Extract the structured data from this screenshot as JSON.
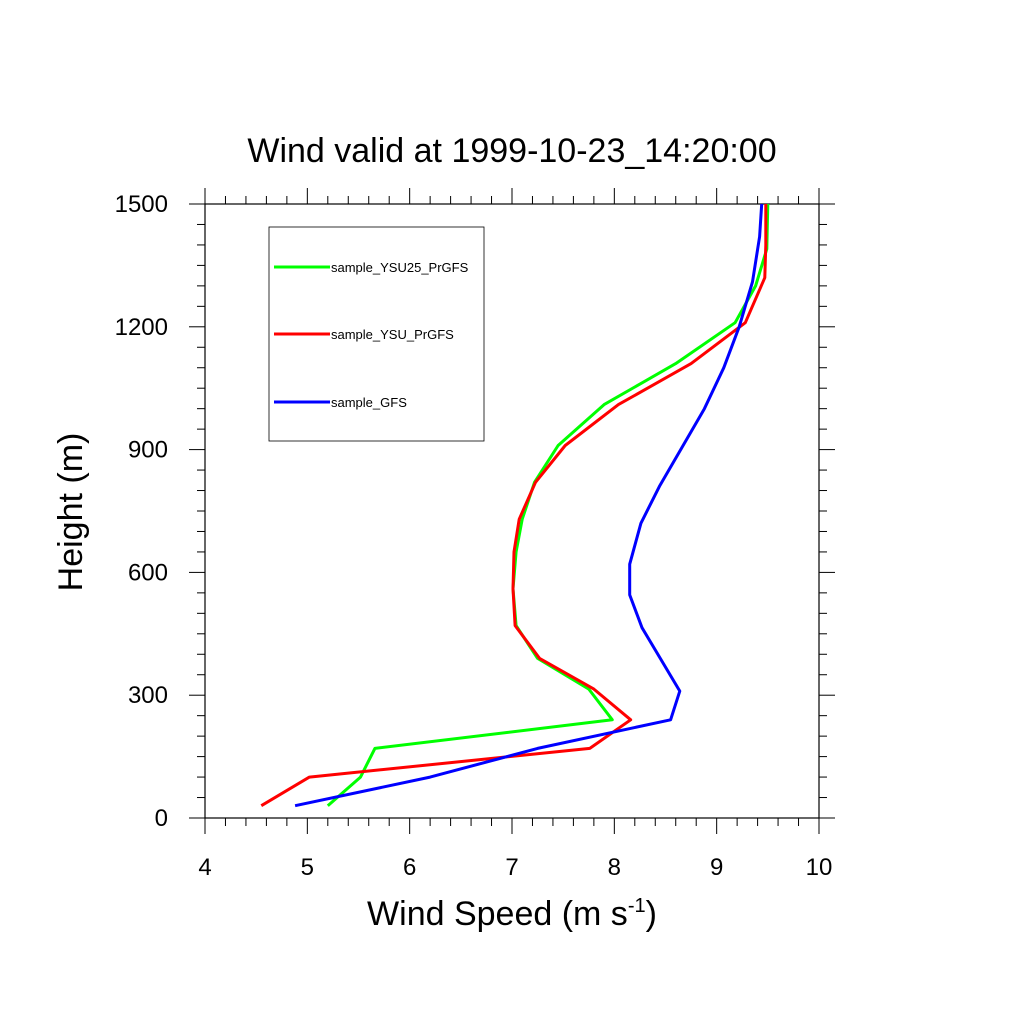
{
  "chart_data": {
    "type": "line",
    "title": "Wind valid at 1999-10-23_14:20:00",
    "xlabel": "Wind Speed (m s",
    "xlabel_sup": "-1",
    "xlabel_end": ")",
    "ylabel": "Height (m)",
    "xlim": [
      4,
      10
    ],
    "ylim": [
      0,
      1500
    ],
    "xticks": [
      "4",
      "5",
      "6",
      "7",
      "8",
      "9",
      "10"
    ],
    "yticks": [
      "0",
      "300",
      "600",
      "900",
      "1200",
      "1500"
    ],
    "legend_position": "top-left",
    "grid": false,
    "series": [
      {
        "name": "sample_YSU25_PrGFS",
        "color": "#00ff00",
        "points": [
          [
            5.2,
            30
          ],
          [
            5.52,
            100
          ],
          [
            5.66,
            170
          ],
          [
            7.98,
            240
          ],
          [
            7.75,
            315
          ],
          [
            7.25,
            390
          ],
          [
            7.04,
            470
          ],
          [
            7.01,
            560
          ],
          [
            7.04,
            650
          ],
          [
            7.1,
            730
          ],
          [
            7.22,
            820
          ],
          [
            7.45,
            910
          ],
          [
            7.9,
            1010
          ],
          [
            8.6,
            1110
          ],
          [
            9.18,
            1210
          ],
          [
            9.38,
            1300
          ],
          [
            9.49,
            1390
          ],
          [
            9.5,
            1500
          ]
        ]
      },
      {
        "name": "sample_YSU_PrGFS",
        "color": "#ff0000",
        "points": [
          [
            4.55,
            30
          ],
          [
            5.02,
            100
          ],
          [
            7.76,
            170
          ],
          [
            8.16,
            240
          ],
          [
            7.8,
            315
          ],
          [
            7.27,
            390
          ],
          [
            7.03,
            470
          ],
          [
            7.01,
            560
          ],
          [
            7.02,
            650
          ],
          [
            7.07,
            730
          ],
          [
            7.23,
            820
          ],
          [
            7.52,
            910
          ],
          [
            8.04,
            1010
          ],
          [
            8.75,
            1110
          ],
          [
            9.28,
            1210
          ],
          [
            9.47,
            1320
          ],
          [
            9.48,
            1400
          ],
          [
            9.48,
            1500
          ]
        ]
      },
      {
        "name": "sample_GFS",
        "color": "#0000ff",
        "points": [
          [
            4.88,
            30
          ],
          [
            6.2,
            100
          ],
          [
            7.25,
            170
          ],
          [
            8.55,
            240
          ],
          [
            8.64,
            310
          ],
          [
            8.27,
            465
          ],
          [
            8.15,
            545
          ],
          [
            8.15,
            620
          ],
          [
            8.26,
            720
          ],
          [
            8.44,
            810
          ],
          [
            8.88,
            1000
          ],
          [
            9.07,
            1100
          ],
          [
            9.22,
            1200
          ],
          [
            9.35,
            1310
          ],
          [
            9.42,
            1420
          ],
          [
            9.44,
            1500
          ]
        ]
      }
    ]
  }
}
